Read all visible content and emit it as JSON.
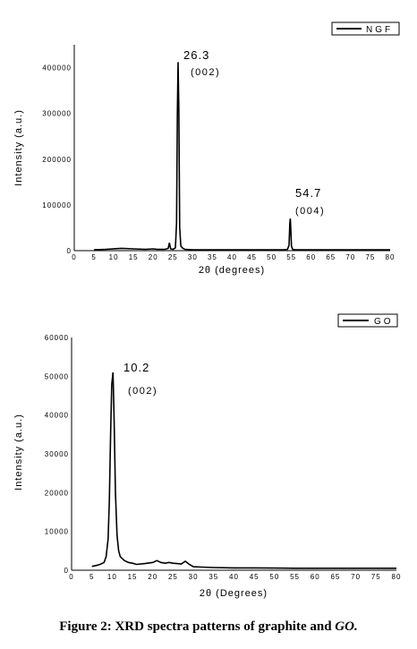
{
  "caption": {
    "main": "Figure 2: XRD spectra patterns of graphite and ",
    "italic": "GO."
  },
  "chart_data": [
    {
      "type": "line",
      "xlabel": "2θ (degrees)",
      "ylabel": "Intensity (a.u.)",
      "xlim": [
        0,
        80
      ],
      "ylim": [
        0,
        450000
      ],
      "xticks": [
        0,
        5,
        10,
        15,
        20,
        25,
        30,
        35,
        40,
        45,
        50,
        55,
        60,
        65,
        70,
        75,
        80
      ],
      "yticks": [
        0,
        100000,
        200000,
        300000,
        400000
      ],
      "legend": {
        "position": "top-right",
        "label": "NGF"
      },
      "series": [
        {
          "name": "NGF",
          "x": [
            5,
            8,
            12,
            15,
            18,
            20,
            21,
            23,
            23.8,
            24.1,
            24.4,
            25,
            25.6,
            25.9,
            26.1,
            26.3,
            26.5,
            26.7,
            27,
            27.5,
            28,
            30,
            35,
            40,
            45,
            50,
            53,
            54,
            54.4,
            54.6,
            54.7,
            54.8,
            55,
            55.3,
            56,
            60,
            65,
            70,
            75,
            80
          ],
          "y": [
            2000,
            3000,
            5000,
            4000,
            3000,
            4000,
            3000,
            3000,
            5000,
            17000,
            4000,
            3000,
            6000,
            60000,
            300000,
            412000,
            300000,
            50000,
            10000,
            5000,
            3000,
            2000,
            2000,
            2000,
            2000,
            2000,
            2000,
            3000,
            12000,
            60000,
            70000,
            55000,
            10000,
            3000,
            2000,
            2000,
            2000,
            2000,
            2000,
            2000
          ]
        }
      ],
      "annotations": [
        {
          "x": 26.3,
          "text": "26.3",
          "hkl": "(002)"
        },
        {
          "x": 54.7,
          "text": "54.7",
          "hkl": "(004)"
        }
      ]
    },
    {
      "type": "line",
      "xlabel": "2θ (Degrees)",
      "ylabel": "Intensity (a.u.)",
      "xlim": [
        0,
        80
      ],
      "ylim": [
        0,
        60000
      ],
      "xticks": [
        0,
        5,
        10,
        15,
        20,
        25,
        30,
        35,
        40,
        45,
        50,
        55,
        60,
        65,
        70,
        75,
        80
      ],
      "yticks": [
        0,
        10000,
        20000,
        30000,
        40000,
        50000,
        60000
      ],
      "legend": {
        "position": "top-right",
        "label": "GO"
      },
      "series": [
        {
          "name": "GO",
          "x": [
            5,
            6,
            7,
            8,
            8.5,
            9,
            9.3,
            9.6,
            9.9,
            10.2,
            10.5,
            10.8,
            11.2,
            11.6,
            12,
            13,
            14,
            15,
            16,
            18,
            20,
            21,
            22,
            23,
            24,
            25,
            26,
            27,
            28,
            29,
            30,
            32,
            35,
            40,
            45,
            50,
            55,
            60,
            65,
            70,
            75,
            80
          ],
          "y": [
            1000,
            1200,
            1500,
            2000,
            3500,
            8000,
            18000,
            35000,
            48000,
            51000,
            38000,
            20000,
            9000,
            5000,
            3500,
            2500,
            2000,
            1800,
            1500,
            1700,
            2000,
            2500,
            2000,
            1800,
            2000,
            1800,
            1700,
            1600,
            2300,
            1500,
            900,
            800,
            700,
            600,
            600,
            550,
            500,
            500,
            500,
            500,
            500,
            500
          ]
        }
      ],
      "annotations": [
        {
          "x": 10.2,
          "text": "10.2",
          "hkl": "(002)"
        }
      ]
    }
  ]
}
